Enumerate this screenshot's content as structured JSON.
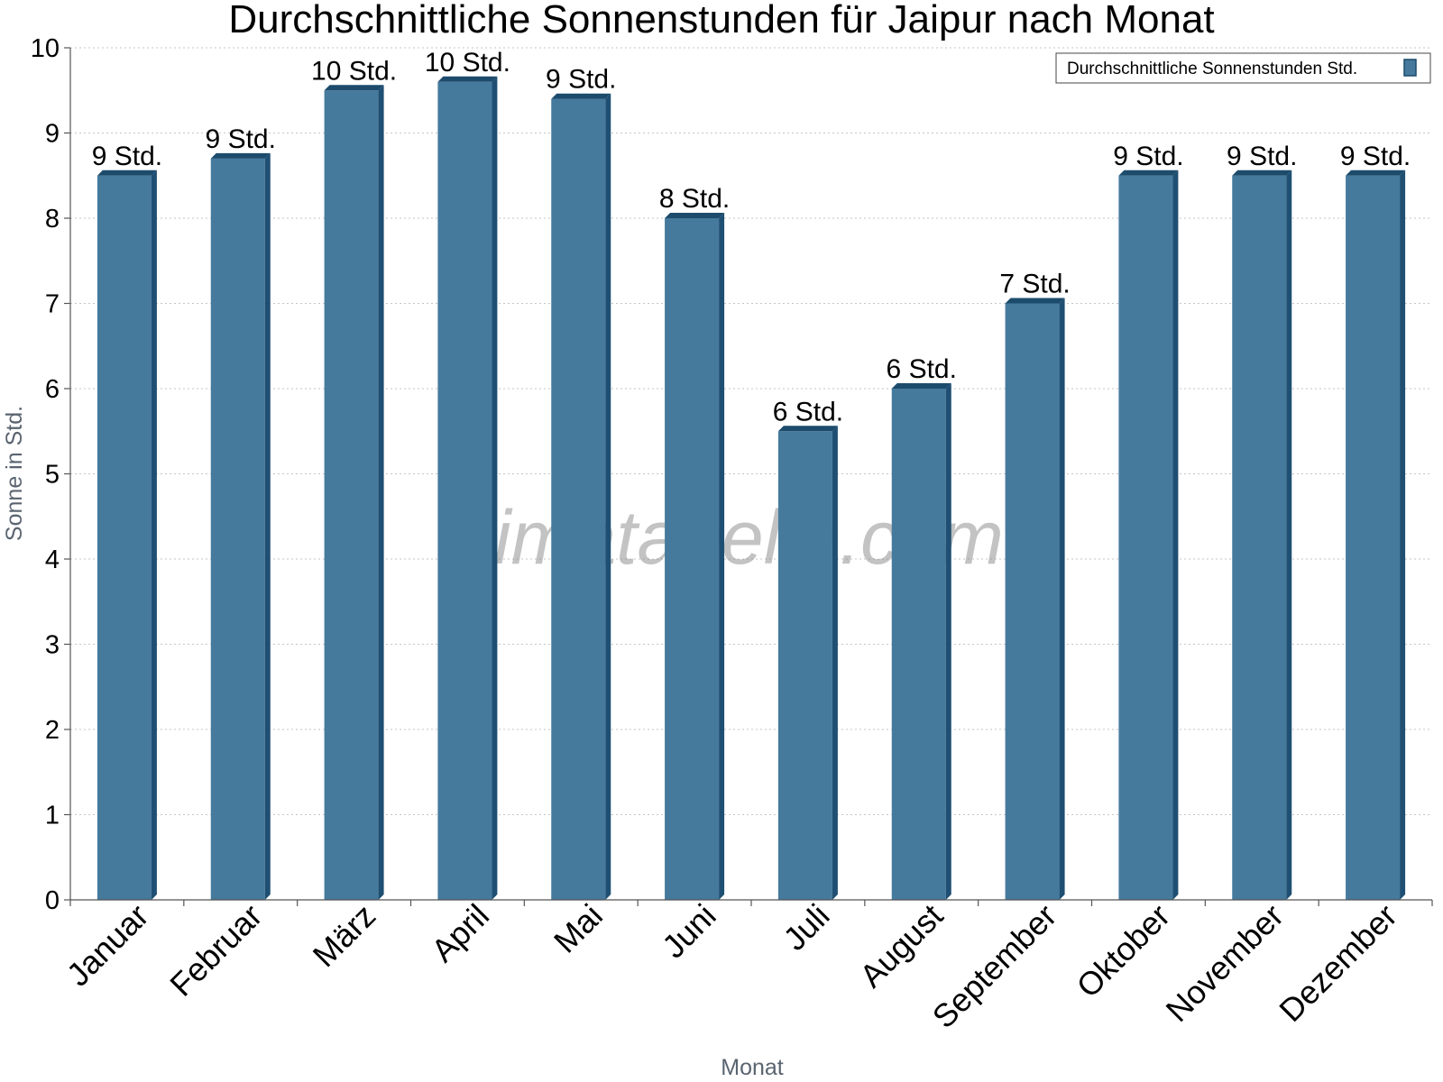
{
  "chart_data": {
    "type": "bar",
    "title": "Durchschnittliche Sonnenstunden für Jaipur nach Monat",
    "xlabel": "Monat",
    "ylabel": "Sonne in Std.",
    "ylim": [
      0,
      10
    ],
    "yticks": [
      0,
      1,
      2,
      3,
      4,
      5,
      6,
      7,
      8,
      9,
      10
    ],
    "grid": true,
    "legend_position": "top-right",
    "categories": [
      "Januar",
      "Februar",
      "März",
      "April",
      "Mai",
      "Juni",
      "Juli",
      "August",
      "September",
      "Oktober",
      "November",
      "Dezember"
    ],
    "series": [
      {
        "name": "Durchschnittliche Sonnenstunden Std.",
        "values": [
          8.5,
          8.7,
          9.5,
          9.6,
          9.4,
          8.0,
          5.5,
          6.0,
          7.0,
          8.5,
          8.5,
          8.5
        ],
        "labels": [
          "9 Std.",
          "9 Std.",
          "10 Std.",
          "10 Std.",
          "9 Std.",
          "8 Std.",
          "6 Std.",
          "6 Std.",
          "7 Std.",
          "9 Std.",
          "9 Std.",
          "9 Std."
        ]
      }
    ]
  },
  "watermark": "klimatabelle.com",
  "colors": {
    "bar_front": "#457a9d",
    "bar_side": "#1f4f72",
    "bar_top": "#1c4b6c"
  }
}
